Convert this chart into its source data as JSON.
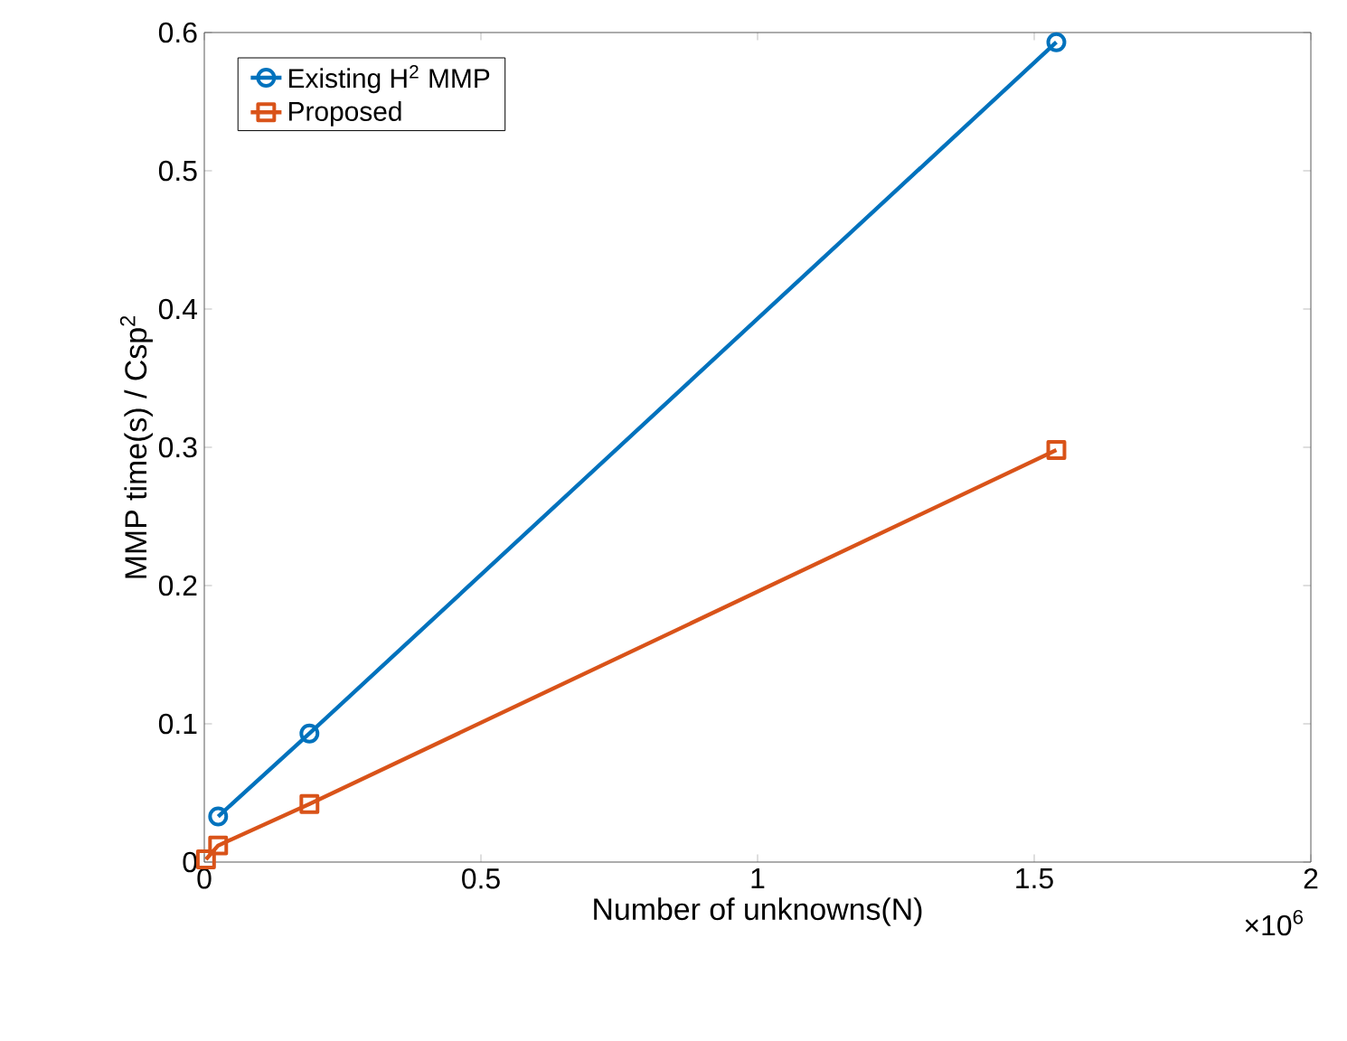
{
  "chart_data": {
    "type": "line",
    "xlabel": "Number of unknowns(N)",
    "ylabel": "MMP time(s) / Csp$^{2}$",
    "xlim": [
      0,
      2
    ],
    "xticks": [
      0,
      0.5,
      1,
      1.5,
      2
    ],
    "ylim": [
      0,
      0.6
    ],
    "yticks": [
      0,
      0.1,
      0.2,
      0.3,
      0.4,
      0.5,
      0.6
    ],
    "annotations": [
      "×10$^{6}$"
    ],
    "legend": "top left",
    "grid": false,
    "line_style": "solid",
    "series": [
      {
        "name": "Existing H$^{2}$ MMP",
        "color": "#0072bd",
        "marker": "circle",
        "x": [
          0.025,
          0.19,
          1.54
        ],
        "values": [
          0.033,
          0.093,
          0.593
        ]
      },
      {
        "name": "Proposed",
        "color": "#d95319",
        "marker": "square",
        "x": [
          0.003,
          0.025,
          0.19,
          1.54
        ],
        "values": [
          0.002,
          0.012,
          0.042,
          0.298
        ]
      }
    ]
  }
}
